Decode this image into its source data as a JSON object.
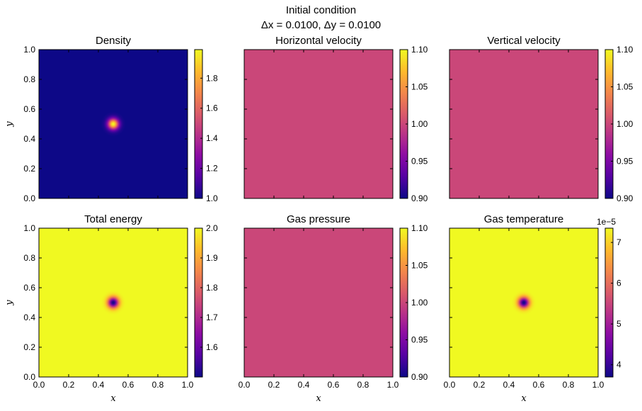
{
  "figure": {
    "title_line1": "Initial condition",
    "title_line2": "Δx = 0.0100, Δy = 0.0100"
  },
  "chart_data": [
    {
      "type": "heatmap",
      "title": "Density",
      "xlabel": "",
      "ylabel": "y",
      "xlim": [
        0,
        1
      ],
      "ylim": [
        0,
        1
      ],
      "xticks": [
        "0.0",
        "0.2",
        "0.4",
        "0.6",
        "0.8",
        "1.0"
      ],
      "yticks": [
        "0.0",
        "0.2",
        "0.4",
        "0.6",
        "0.8",
        "1.0"
      ],
      "show_xticklabels": false,
      "show_yticklabels": true,
      "colormap": "plasma",
      "field": {
        "kind": "gaussian",
        "center": [
          0.5,
          0.5
        ],
        "background": 1.0,
        "peak": 1.99
      },
      "colorbar": {
        "range": [
          1.0,
          1.99
        ],
        "ticks": [
          1.0,
          1.2,
          1.4,
          1.6,
          1.8
        ],
        "tick_labels": [
          "1.0",
          "1.2",
          "1.4",
          "1.6",
          "1.8"
        ],
        "offset_text": ""
      }
    },
    {
      "type": "heatmap",
      "title": "Horizontal velocity",
      "xlabel": "",
      "ylabel": "",
      "xlim": [
        0,
        1
      ],
      "ylim": [
        0,
        1
      ],
      "xticks": [
        "0.0",
        "0.2",
        "0.4",
        "0.6",
        "0.8",
        "1.0"
      ],
      "yticks": [
        "0.0",
        "0.2",
        "0.4",
        "0.6",
        "0.8",
        "1.0"
      ],
      "show_xticklabels": false,
      "show_yticklabels": false,
      "colormap": "plasma",
      "field": {
        "kind": "uniform",
        "value": 1.0
      },
      "colorbar": {
        "range": [
          0.9,
          1.1
        ],
        "ticks": [
          0.9,
          0.95,
          1.0,
          1.05,
          1.1
        ],
        "tick_labels": [
          "0.90",
          "0.95",
          "1.00",
          "1.05",
          "1.10"
        ],
        "offset_text": ""
      }
    },
    {
      "type": "heatmap",
      "title": "Vertical velocity",
      "xlabel": "",
      "ylabel": "",
      "xlim": [
        0,
        1
      ],
      "ylim": [
        0,
        1
      ],
      "xticks": [
        "0.0",
        "0.2",
        "0.4",
        "0.6",
        "0.8",
        "1.0"
      ],
      "yticks": [
        "0.0",
        "0.2",
        "0.4",
        "0.6",
        "0.8",
        "1.0"
      ],
      "show_xticklabels": false,
      "show_yticklabels": false,
      "colormap": "plasma",
      "field": {
        "kind": "uniform",
        "value": 1.0
      },
      "colorbar": {
        "range": [
          0.9,
          1.1
        ],
        "ticks": [
          0.9,
          0.95,
          1.0,
          1.05,
          1.1
        ],
        "tick_labels": [
          "0.90",
          "0.95",
          "1.00",
          "1.05",
          "1.10"
        ],
        "offset_text": ""
      }
    },
    {
      "type": "heatmap",
      "title": "Total energy",
      "xlabel": "x",
      "ylabel": "y",
      "xlim": [
        0,
        1
      ],
      "ylim": [
        0,
        1
      ],
      "xticks": [
        "0.0",
        "0.2",
        "0.4",
        "0.6",
        "0.8",
        "1.0"
      ],
      "yticks": [
        "0.0",
        "0.2",
        "0.4",
        "0.6",
        "0.8",
        "1.0"
      ],
      "show_xticklabels": true,
      "show_yticklabels": true,
      "colormap": "plasma",
      "field": {
        "kind": "gaussian",
        "center": [
          0.5,
          0.5
        ],
        "background": 2.0,
        "peak": 1.5
      },
      "colorbar": {
        "range": [
          1.5,
          2.0
        ],
        "ticks": [
          1.6,
          1.7,
          1.8,
          1.9,
          2.0
        ],
        "tick_labels": [
          "1.6",
          "1.7",
          "1.8",
          "1.9",
          "2.0"
        ],
        "offset_text": ""
      }
    },
    {
      "type": "heatmap",
      "title": "Gas pressure",
      "xlabel": "x",
      "ylabel": "",
      "xlim": [
        0,
        1
      ],
      "ylim": [
        0,
        1
      ],
      "xticks": [
        "0.0",
        "0.2",
        "0.4",
        "0.6",
        "0.8",
        "1.0"
      ],
      "yticks": [
        "0.0",
        "0.2",
        "0.4",
        "0.6",
        "0.8",
        "1.0"
      ],
      "show_xticklabels": true,
      "show_yticklabels": false,
      "colormap": "plasma",
      "field": {
        "kind": "uniform",
        "value": 1.0
      },
      "colorbar": {
        "range": [
          0.9,
          1.1
        ],
        "ticks": [
          0.9,
          0.95,
          1.0,
          1.05,
          1.1
        ],
        "tick_labels": [
          "0.90",
          "0.95",
          "1.00",
          "1.05",
          "1.10"
        ],
        "offset_text": ""
      }
    },
    {
      "type": "heatmap",
      "title": "Gas temperature",
      "xlabel": "x",
      "ylabel": "",
      "xlim": [
        0,
        1
      ],
      "ylim": [
        0,
        1
      ],
      "xticks": [
        "0.0",
        "0.2",
        "0.4",
        "0.6",
        "0.8",
        "1.0"
      ],
      "yticks": [
        "0.0",
        "0.2",
        "0.4",
        "0.6",
        "0.8",
        "1.0"
      ],
      "show_xticklabels": true,
      "show_yticklabels": false,
      "colormap": "plasma",
      "field": {
        "kind": "gaussian",
        "center": [
          0.5,
          0.5
        ],
        "background": 7.35,
        "peak": 3.7
      },
      "colorbar": {
        "range": [
          3.7,
          7.35
        ],
        "ticks": [
          4,
          5,
          6,
          7
        ],
        "tick_labels": [
          "4",
          "5",
          "6",
          "7"
        ],
        "offset_text": "1e−5"
      }
    }
  ]
}
